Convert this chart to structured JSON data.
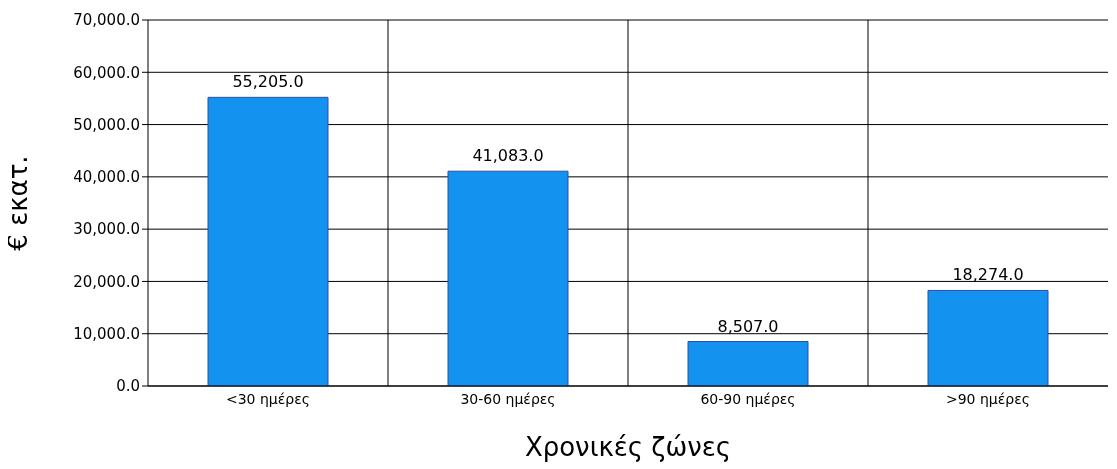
{
  "chart_data": {
    "type": "bar",
    "xlabel": "Χρονικές ζώνες",
    "ylabel": "€ εκατ.",
    "categories": [
      "<30 ημέρες",
      "30-60 ημέρες",
      "60-90 ημέρες",
      ">90 ημέρες"
    ],
    "values": [
      55205,
      41083,
      8507,
      18274
    ],
    "value_labels": [
      "55,205.0",
      "41,083.0",
      "8,507.0",
      "18,274.0"
    ],
    "color": "#1393ef",
    "ylim": [
      0,
      70000
    ],
    "yticks": [
      {
        "value": 0,
        "label": "0.0"
      },
      {
        "value": 10000,
        "label": "10,000.0"
      },
      {
        "value": 20000,
        "label": "20,000.0"
      },
      {
        "value": 30000,
        "label": "30,000.0"
      },
      {
        "value": 40000,
        "label": "40,000.0"
      },
      {
        "value": 50000,
        "label": "50,000.0"
      },
      {
        "value": 60000,
        "label": "60,000.0"
      },
      {
        "value": 70000,
        "label": "70,000.0"
      }
    ],
    "grid": true,
    "legend": false
  }
}
